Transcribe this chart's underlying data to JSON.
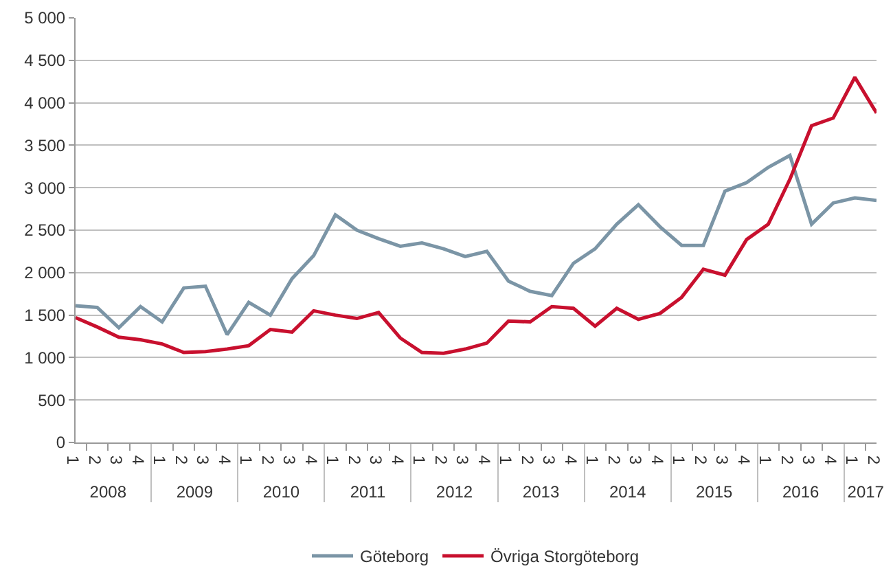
{
  "chart_data": {
    "type": "line",
    "categories": [
      "1",
      "2",
      "3",
      "4",
      "1",
      "2",
      "3",
      "4",
      "1",
      "2",
      "3",
      "4",
      "1",
      "2",
      "3",
      "4",
      "1",
      "2",
      "3",
      "4",
      "1",
      "2",
      "3",
      "4",
      "1",
      "2",
      "3",
      "4",
      "1",
      "2",
      "3",
      "4",
      "1",
      "2",
      "3",
      "4",
      "1",
      "2"
    ],
    "annotations": [
      "2008",
      "2009",
      "2010",
      "2011",
      "2012",
      "2013",
      "2014",
      "2015",
      "2016",
      "2017"
    ],
    "series": [
      {
        "name": "Göteborg",
        "color": "#7b95a6",
        "values": [
          1610,
          1590,
          1350,
          1600,
          1420,
          1820,
          1840,
          1270,
          1650,
          1500,
          1930,
          2200,
          2680,
          2500,
          2400,
          2310,
          2350,
          2280,
          2190,
          2250,
          1900,
          1780,
          1730,
          2110,
          2280,
          2570,
          2800,
          2540,
          2320,
          2320,
          2960,
          3060,
          3240,
          3380,
          2570,
          2820,
          2880,
          2850
        ]
      },
      {
        "name": "Övriga Storgöteborg",
        "color": "#c8102e",
        "values": [
          1470,
          1360,
          1240,
          1210,
          1160,
          1060,
          1070,
          1100,
          1140,
          1330,
          1300,
          1550,
          1500,
          1460,
          1530,
          1230,
          1060,
          1050,
          1100,
          1170,
          1430,
          1420,
          1600,
          1580,
          1370,
          1580,
          1450,
          1520,
          1710,
          2040,
          1970,
          2390,
          2570,
          3100,
          3730,
          3820,
          4300,
          3880
        ]
      }
    ],
    "ylim": [
      0,
      5000
    ],
    "yticks": [
      0,
      500,
      {
        "value": 1000,
        "label": "1 000"
      },
      {
        "value": 1500,
        "label": "1 500"
      },
      {
        "value": 2000,
        "label": "2 000"
      },
      {
        "value": 2500,
        "label": "2 500"
      },
      {
        "value": 3000,
        "label": "3 000"
      },
      {
        "value": 3500,
        "label": "3 500"
      },
      {
        "value": 4000,
        "label": "4 000"
      },
      {
        "value": 4500,
        "label": "4 500"
      },
      {
        "value": 5000,
        "label": "5 000"
      }
    ],
    "grid": "y",
    "legend": "bottom",
    "marker": "none",
    "line_style": "solid"
  }
}
